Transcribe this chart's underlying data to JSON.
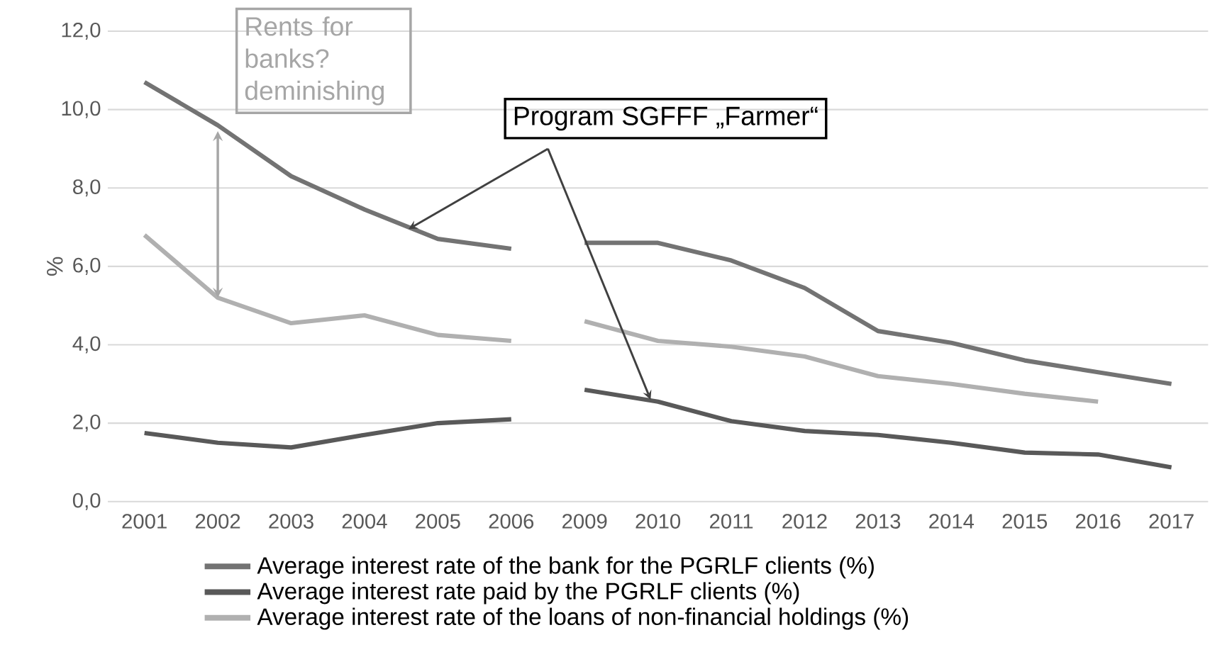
{
  "chart_data": {
    "type": "line",
    "categories": [
      "2001",
      "2002",
      "2003",
      "2004",
      "2005",
      "2006",
      "2009",
      "2010",
      "2011",
      "2012",
      "2013",
      "2014",
      "2015",
      "2016",
      "2017"
    ],
    "ylabel": "%",
    "ylim": [
      0,
      12
    ],
    "yticks": [
      {
        "value": 0,
        "label": "0,0"
      },
      {
        "value": 2,
        "label": "2,0"
      },
      {
        "value": 4,
        "label": "4,0"
      },
      {
        "value": 6,
        "label": "6,0"
      },
      {
        "value": 8,
        "label": "8,0"
      },
      {
        "value": 10,
        "label": "10,0"
      },
      {
        "value": 12,
        "label": "12,0"
      }
    ],
    "grid": "y",
    "legend": "bottom",
    "marker": "none",
    "line_style": "solid",
    "series": [
      {
        "name": "Average interest rate of the bank for the PGRLF clients (%)",
        "color": "#737373",
        "values": [
          10.7,
          9.6,
          8.3,
          7.45,
          6.7,
          6.45,
          null,
          null,
          null,
          null,
          null,
          null,
          null,
          null,
          null
        ]
      },
      {
        "name": "Average interest rate paid by the PGRLF clients (%)",
        "color": "#595959",
        "values": [
          1.75,
          1.5,
          1.38,
          1.7,
          2.0,
          2.1,
          null,
          null,
          null,
          null,
          null,
          null,
          null,
          null,
          null
        ]
      },
      {
        "name": "Average interest rate of the loans of non-financial holdings (%)",
        "color": "#b0b0b0",
        "values": [
          6.8,
          5.2,
          4.55,
          4.75,
          4.25,
          4.1,
          null,
          null,
          null,
          null,
          null,
          null,
          null,
          null,
          null
        ]
      },
      {
        "color": "#737373",
        "values": [
          null,
          null,
          null,
          null,
          null,
          null,
          6.6,
          6.6,
          6.15,
          5.45,
          4.35,
          4.05,
          3.6,
          3.3,
          3.0
        ]
      },
      {
        "color": "#595959",
        "values": [
          null,
          null,
          null,
          null,
          null,
          null,
          2.85,
          2.55,
          2.05,
          1.8,
          1.7,
          1.5,
          1.25,
          1.2,
          0.87
        ]
      },
      {
        "color": "#b0b0b0",
        "values": [
          null,
          null,
          null,
          null,
          null,
          null,
          4.6,
          4.1,
          3.95,
          3.7,
          3.2,
          3.0,
          2.75,
          2.55,
          null
        ]
      }
    ],
    "annotations": [
      "Rents for banks? deminishing",
      {
        "text": "Program SGFFF „Farmer“",
        "x": "2010",
        "y": 2.55
      }
    ]
  }
}
